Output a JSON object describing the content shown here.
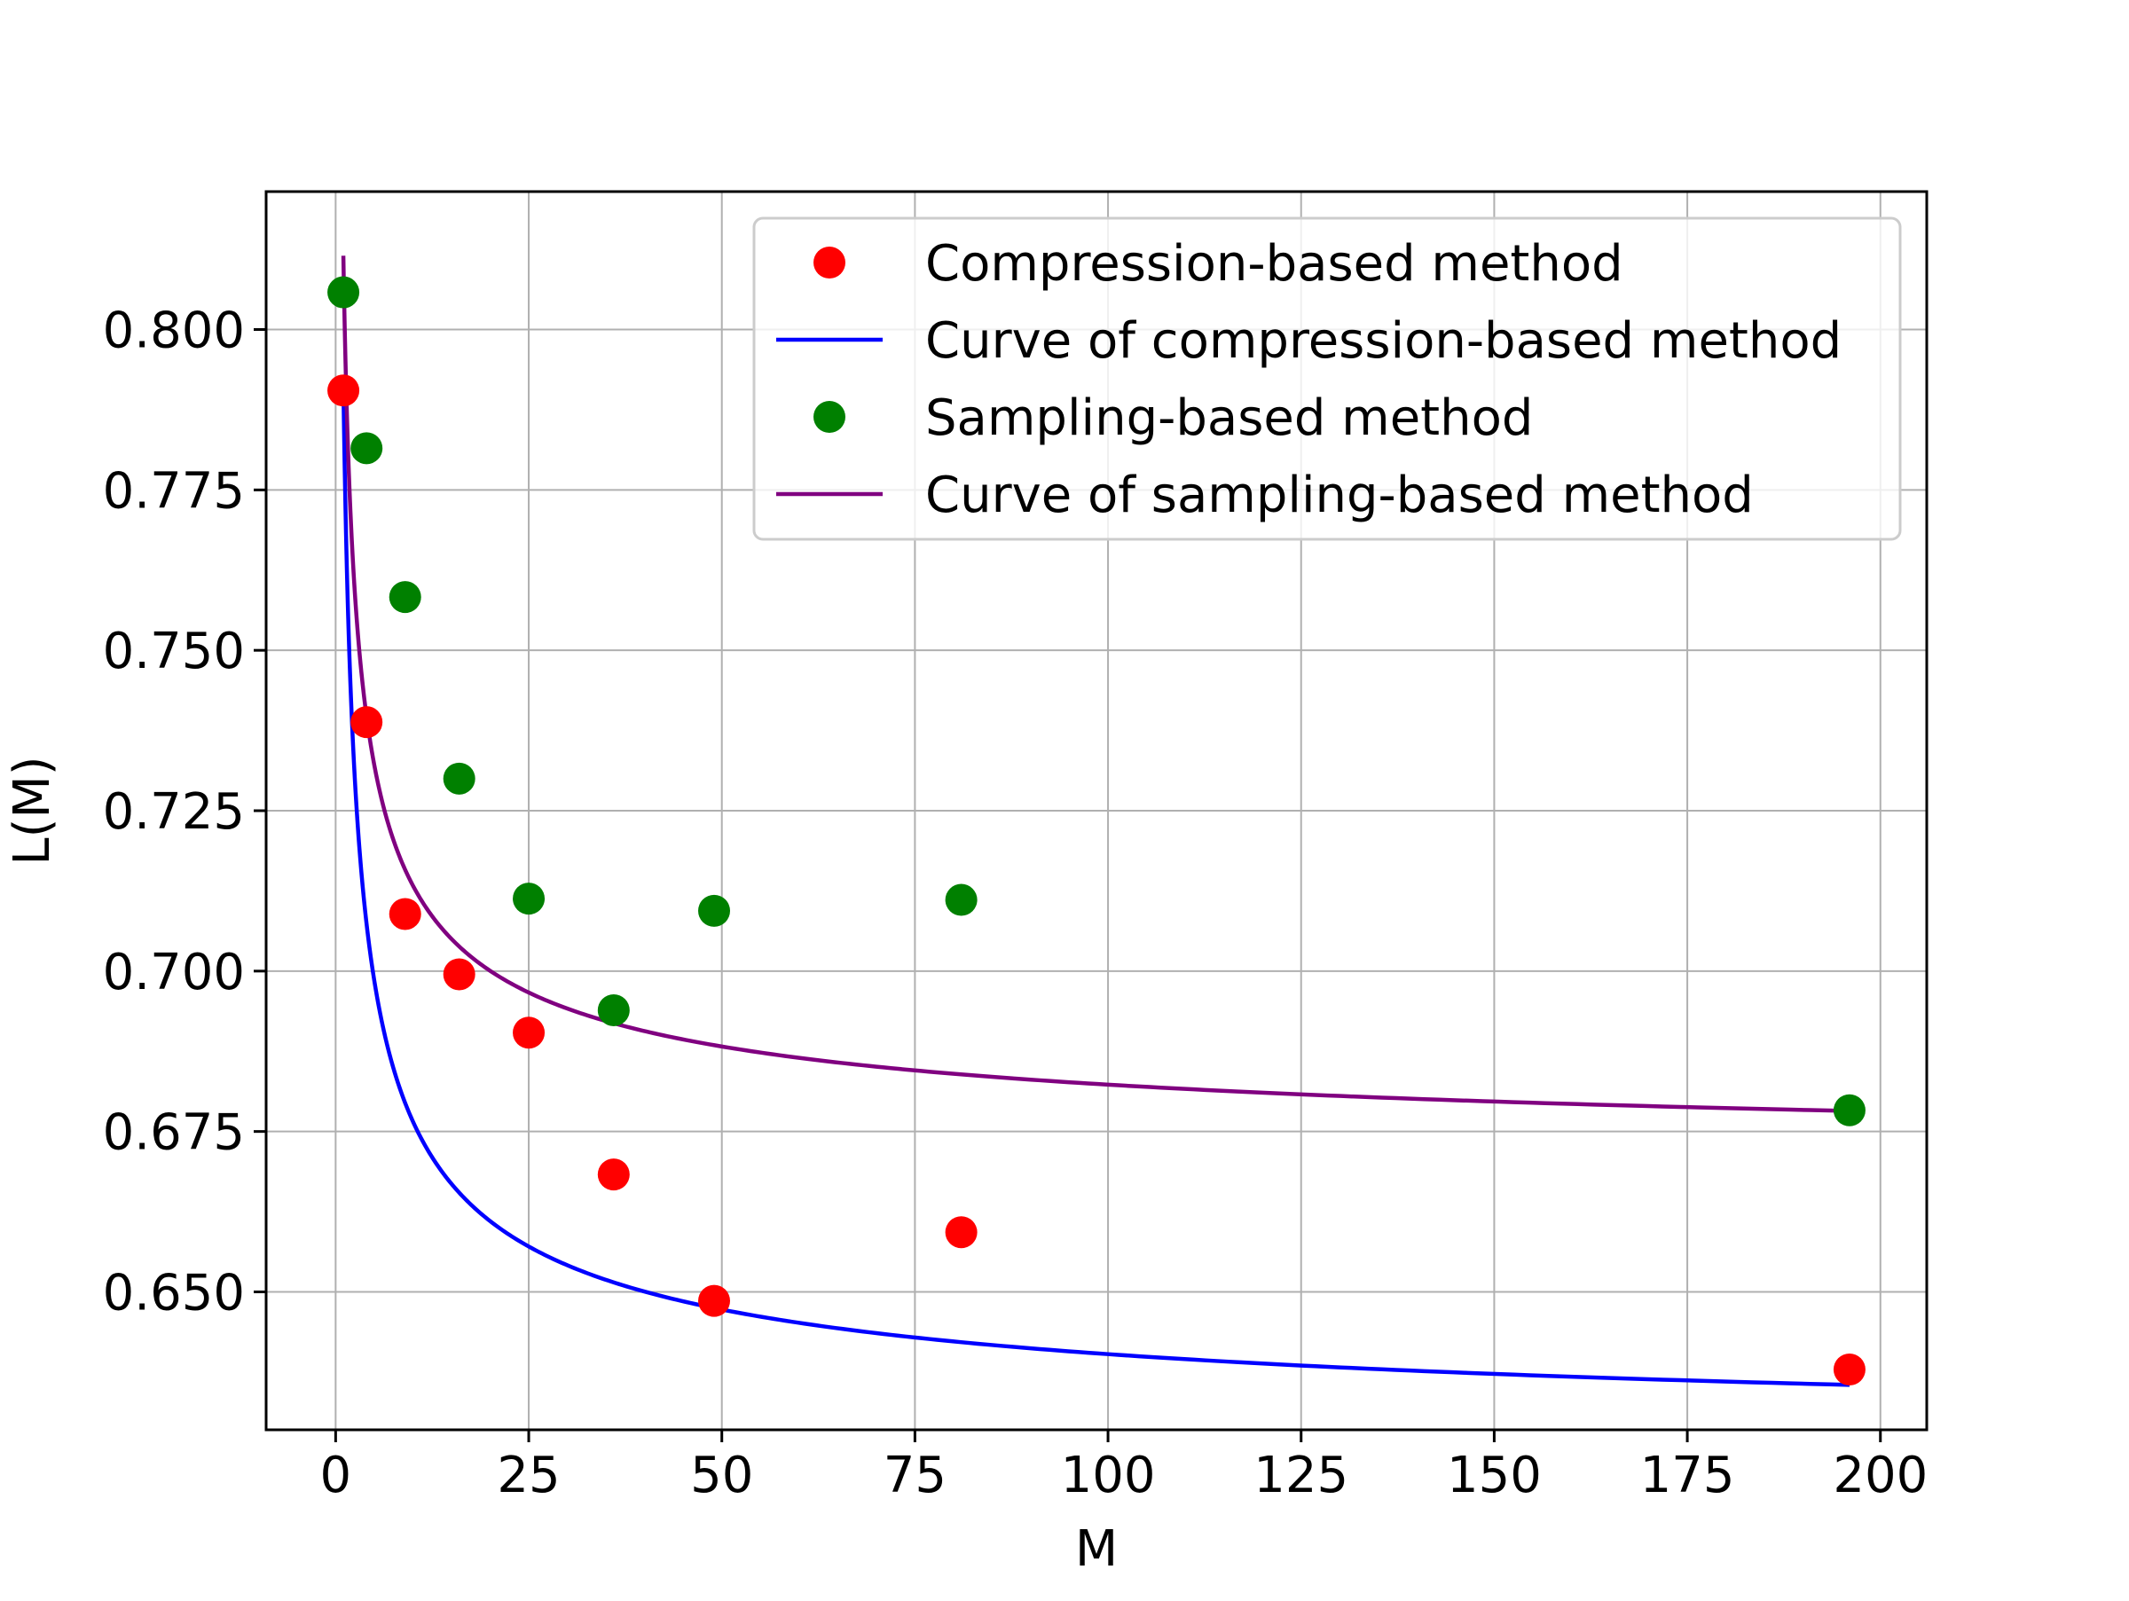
{
  "chart_data": {
    "type": "scatter",
    "title": "",
    "xlabel": "M",
    "ylabel": "L(M)",
    "xlim": [
      -9,
      206
    ],
    "ylim": [
      0.6285,
      0.8215
    ],
    "grid": true,
    "legend_position": "top-right",
    "x_ticks": [
      0,
      25,
      50,
      75,
      100,
      125,
      150,
      175,
      200
    ],
    "x_tick_labels": [
      "0",
      "25",
      "50",
      "75",
      "100",
      "125",
      "150",
      "175",
      "200"
    ],
    "y_ticks": [
      0.65,
      0.675,
      0.7,
      0.725,
      0.75,
      0.775,
      0.8
    ],
    "y_tick_labels": [
      "0.650",
      "0.675",
      "0.700",
      "0.725",
      "0.750",
      "0.775",
      "0.800"
    ],
    "series": [
      {
        "name": "Compression-based method",
        "kind": "scatter",
        "color": "#ff0000",
        "x": [
          1,
          4,
          9,
          16,
          25,
          36,
          49,
          81,
          196
        ],
        "y": [
          0.7905,
          0.7388,
          0.7089,
          0.6995,
          0.6904,
          0.6683,
          0.6486,
          0.6593,
          0.6379
        ]
      },
      {
        "name": "Curve of compression-based method",
        "kind": "line",
        "color": "#0000ff",
        "x_range": [
          1,
          196
        ],
        "y_at_start": 0.7913,
        "y_at_end": 0.6355
      },
      {
        "name": "Sampling-based method",
        "kind": "scatter",
        "color": "#008000",
        "x": [
          1,
          4,
          9,
          16,
          25,
          36,
          49,
          81,
          196
        ],
        "y": [
          0.8058,
          0.7815,
          0.7583,
          0.73,
          0.7113,
          0.6939,
          0.7094,
          0.7111,
          0.6783
        ]
      },
      {
        "name": "Curve of sampling-based method",
        "kind": "line",
        "color": "#800080",
        "x_range": [
          1,
          196
        ],
        "y_at_start": 0.8115,
        "y_at_end": 0.6782
      }
    ]
  }
}
